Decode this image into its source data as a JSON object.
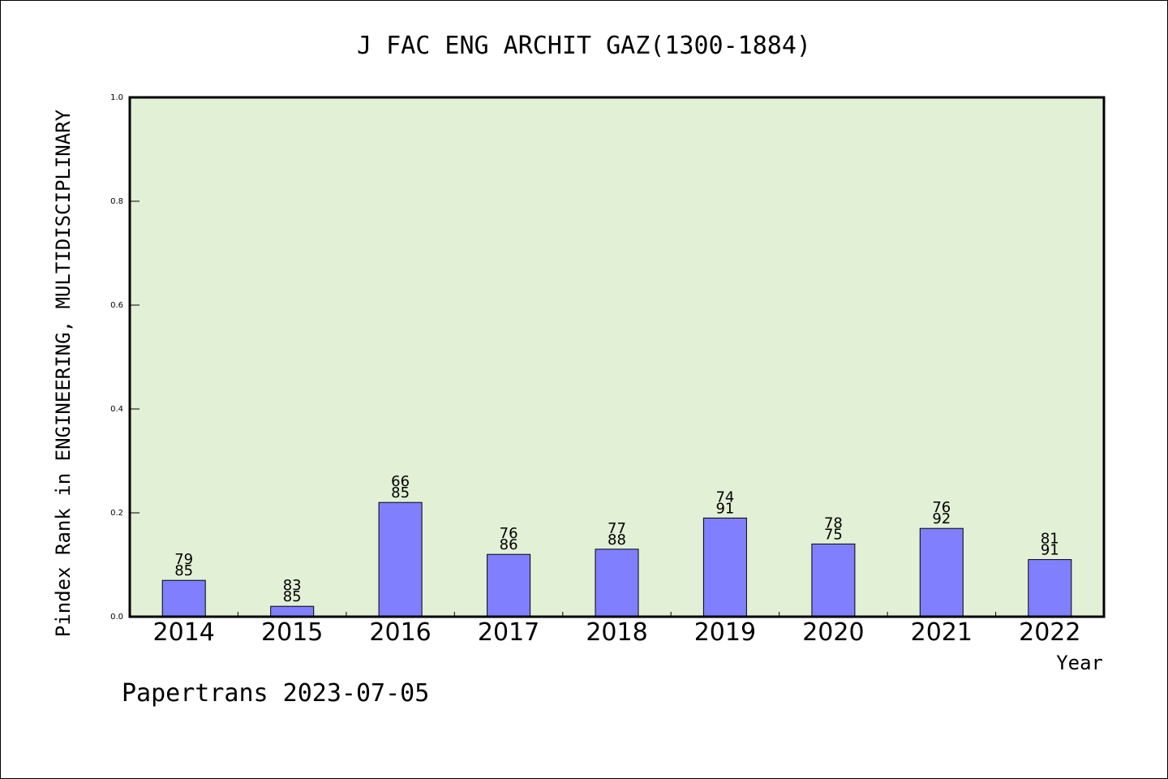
{
  "chart_data": {
    "type": "bar",
    "title": "J FAC ENG ARCHIT GAZ(1300-1884)",
    "xlabel": "Year",
    "ylabel": "Pindex Rank in ENGINEERING, MULTIDISCIPLINARY",
    "categories": [
      "2014",
      "2015",
      "2016",
      "2017",
      "2018",
      "2019",
      "2020",
      "2021",
      "2022"
    ],
    "values": [
      0.07,
      0.02,
      0.22,
      0.12,
      0.13,
      0.19,
      0.14,
      0.17,
      0.11
    ],
    "labels_top": [
      "79",
      "83",
      "66",
      "76",
      "77",
      "74",
      "78",
      "76",
      "81"
    ],
    "labels_bottom": [
      "85",
      "85",
      "85",
      "86",
      "88",
      "91",
      "75",
      "92",
      "91"
    ],
    "ylim": [
      0,
      1.0
    ],
    "yticks": [
      "0.0",
      "0.2",
      "0.4",
      "0.6",
      "0.8",
      "1.0"
    ],
    "grid": false,
    "colors": {
      "plot_bg": "#e2f0d6",
      "bar": "#8080ff",
      "bar_edge": "#000000"
    }
  },
  "footer": {
    "credit": "Papertrans 2023-07-05"
  }
}
